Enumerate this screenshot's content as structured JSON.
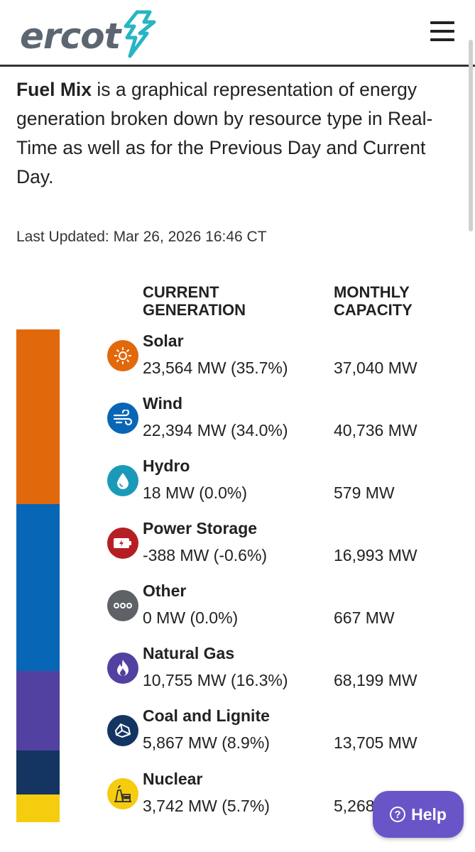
{
  "header": {
    "logo_text": "ercot",
    "menu_icon": "hamburger-icon"
  },
  "intro": {
    "title": "Fuel Mix",
    "text": " is a graphical representation of energy generation broken down by resource type in Real-Time as well as for the Previous Day and Current Day."
  },
  "last_updated": "Last Updated: Mar 26, 2026 16:46 CT",
  "columns": {
    "generation": "CURRENT GENERATION",
    "capacity": "MONTHLY CAPACITY"
  },
  "colors": {
    "solar": "#e2680c",
    "wind": "#0866b6",
    "hydro": "#1a9ab8",
    "storage": "#b51f24",
    "other": "#5e6166",
    "gas": "#5241a0",
    "coal": "#143562",
    "nuclear": "#f5cc0e",
    "help": "#6a55c8",
    "logo": "#5b6670",
    "logo_accent": "#27b5c4"
  },
  "fuels": [
    {
      "name": "Solar",
      "generation": "23,564 MW (35.7%)",
      "capacity": "37,040 MW",
      "share": 35.7,
      "icon": "sun-icon"
    },
    {
      "name": "Wind",
      "generation": "22,394 MW (34.0%)",
      "capacity": "40,736 MW",
      "share": 34.0,
      "icon": "wind-icon"
    },
    {
      "name": "Hydro",
      "generation": "18 MW (0.0%)",
      "capacity": "579 MW",
      "share": 0.0,
      "icon": "droplet-icon"
    },
    {
      "name": "Power Storage",
      "generation": "-388 MW (-0.6%)",
      "capacity": "16,993 MW",
      "share": -0.6,
      "icon": "battery-icon"
    },
    {
      "name": "Other",
      "generation": "0 MW (0.0%)",
      "capacity": "667 MW",
      "share": 0.0,
      "icon": "dots-icon"
    },
    {
      "name": "Natural Gas",
      "generation": "10,755 MW (16.3%)",
      "capacity": "68,199 MW",
      "share": 16.3,
      "icon": "flame-icon"
    },
    {
      "name": "Coal and Lignite",
      "generation": "5,867 MW (8.9%)",
      "capacity": "13,705 MW",
      "share": 8.9,
      "icon": "coal-icon"
    },
    {
      "name": "Nuclear",
      "generation": "3,742 MW (5.7%)",
      "capacity": "5,268 MW",
      "share": 5.7,
      "icon": "nuclear-plant-icon"
    }
  ],
  "help": {
    "label": "Help"
  }
}
